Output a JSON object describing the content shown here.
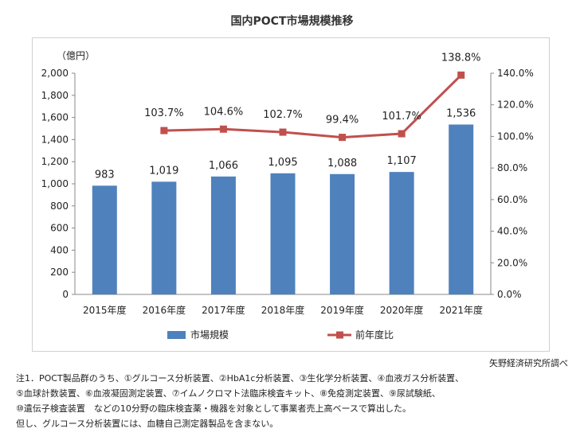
{
  "chart_data": {
    "type": "bar",
    "title": "国内POCT市場規模推移",
    "y_unit_label": "（億円）",
    "categories": [
      "2015年度",
      "2016年度",
      "2017年度",
      "2018年度",
      "2019年度",
      "2020年度",
      "2021年度"
    ],
    "series": [
      {
        "name": "市場規模",
        "type": "bar",
        "axis": "left",
        "color": "#4f81bd",
        "values": [
          983,
          1019,
          1066,
          1095,
          1088,
          1107,
          1536
        ],
        "labels": [
          "983",
          "1,019",
          "1,066",
          "1,095",
          "1,088",
          "1,107",
          "1,536"
        ]
      },
      {
        "name": "前年度比",
        "type": "line",
        "axis": "right",
        "color": "#c0504d",
        "values": [
          null,
          103.7,
          104.6,
          102.7,
          99.4,
          101.7,
          138.8
        ],
        "labels": [
          "",
          "103.7%",
          "104.6%",
          "102.7%",
          "99.4%",
          "101.7%",
          "138.8%"
        ]
      }
    ],
    "ylim_left": [
      0,
      2000
    ],
    "yticks_left": [
      "0",
      "200",
      "400",
      "600",
      "800",
      "1,000",
      "1,200",
      "1,400",
      "1,600",
      "1,800",
      "2,000"
    ],
    "ylim_right": [
      0,
      140
    ],
    "yticks_right": [
      "0.0%",
      "20.0%",
      "40.0%",
      "60.0%",
      "80.0%",
      "100.0%",
      "120.0%",
      "140.0%"
    ],
    "legend_position": "bottom",
    "grid": false
  },
  "source": "矢野経済研究所調べ",
  "notes": [
    "注1．POCT製品群のうち、①グルコース分析装置、②HbA1c分析装置、③生化学分析装置、④血液ガス分析装置、",
    "⑤血球計数装置、⑥血液凝固測定装置、⑦イムノクロマト法臨床検査キット、⑧免疫測定装置、⑨尿試験紙、",
    "⑩遺伝子検査装置　などの10分野の臨床検査薬・機器を対象として事業者売上高ベースで算出した。",
    "但し、グルコース分析装置には、血糖自己測定器製品を含まない。"
  ]
}
